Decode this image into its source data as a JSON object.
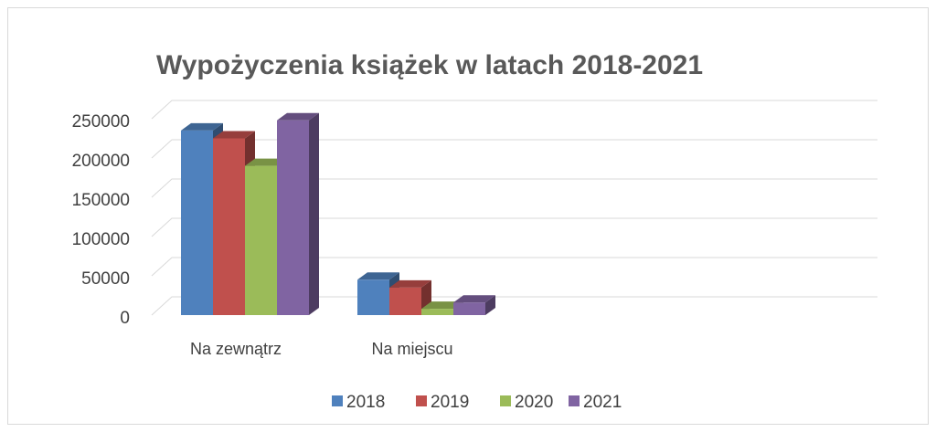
{
  "chart_data": {
    "type": "bar3d",
    "title": "Wypożyczenia książek w latach 2018-2021",
    "categories": [
      "Na zewnątrz",
      "Na miejscu",
      null,
      null
    ],
    "series": [
      {
        "name": "2018",
        "color": "#4f81bd",
        "values": [
          235000,
          45000,
          null,
          null
        ]
      },
      {
        "name": "2019",
        "color": "#c0504d",
        "values": [
          225000,
          35000,
          null,
          null
        ]
      },
      {
        "name": "2020",
        "color": "#9bbb59",
        "values": [
          190000,
          8000,
          null,
          null
        ]
      },
      {
        "name": "2021",
        "color": "#8064a2",
        "values": [
          248000,
          16000,
          null,
          null
        ]
      }
    ],
    "ylim": [
      0,
      250000
    ],
    "yticks": [
      0,
      50000,
      100000,
      150000,
      200000,
      250000
    ],
    "grid": true,
    "legend": "bottom"
  }
}
